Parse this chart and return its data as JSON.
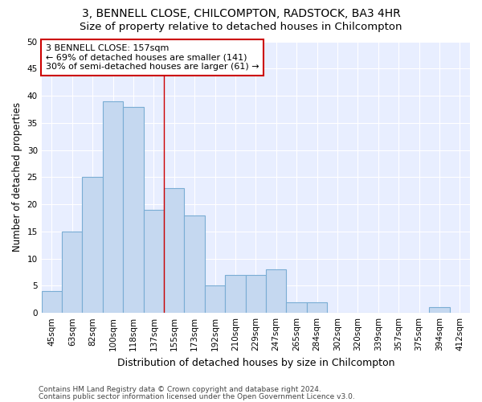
{
  "title1": "3, BENNELL CLOSE, CHILCOMPTON, RADSTOCK, BA3 4HR",
  "title2": "Size of property relative to detached houses in Chilcompton",
  "xlabel": "Distribution of detached houses by size in Chilcompton",
  "ylabel": "Number of detached properties",
  "categories": [
    "45sqm",
    "63sqm",
    "82sqm",
    "100sqm",
    "118sqm",
    "137sqm",
    "155sqm",
    "173sqm",
    "192sqm",
    "210sqm",
    "229sqm",
    "247sqm",
    "265sqm",
    "284sqm",
    "302sqm",
    "320sqm",
    "339sqm",
    "357sqm",
    "375sqm",
    "394sqm",
    "412sqm"
  ],
  "values": [
    4,
    15,
    25,
    39,
    38,
    19,
    23,
    18,
    5,
    7,
    7,
    8,
    2,
    2,
    0,
    0,
    0,
    0,
    0,
    1,
    0
  ],
  "bar_color": "#c5d8f0",
  "bar_edge_color": "#7aadd4",
  "vline_color": "#cc0000",
  "vline_index": 6,
  "annotation_text": "3 BENNELL CLOSE: 157sqm\n← 69% of detached houses are smaller (141)\n30% of semi-detached houses are larger (61) →",
  "annotation_box_color": "#ffffff",
  "annotation_box_edge": "#cc0000",
  "ylim": [
    0,
    50
  ],
  "yticks": [
    0,
    5,
    10,
    15,
    20,
    25,
    30,
    35,
    40,
    45,
    50
  ],
  "footer1": "Contains HM Land Registry data © Crown copyright and database right 2024.",
  "footer2": "Contains public sector information licensed under the Open Government Licence v3.0.",
  "fig_bg_color": "#ffffff",
  "plot_bg_color": "#e8eeff",
  "grid_color": "#ffffff",
  "title1_fontsize": 10,
  "title2_fontsize": 9.5,
  "xlabel_fontsize": 9,
  "ylabel_fontsize": 8.5,
  "tick_fontsize": 7.5,
  "footer_fontsize": 6.5
}
